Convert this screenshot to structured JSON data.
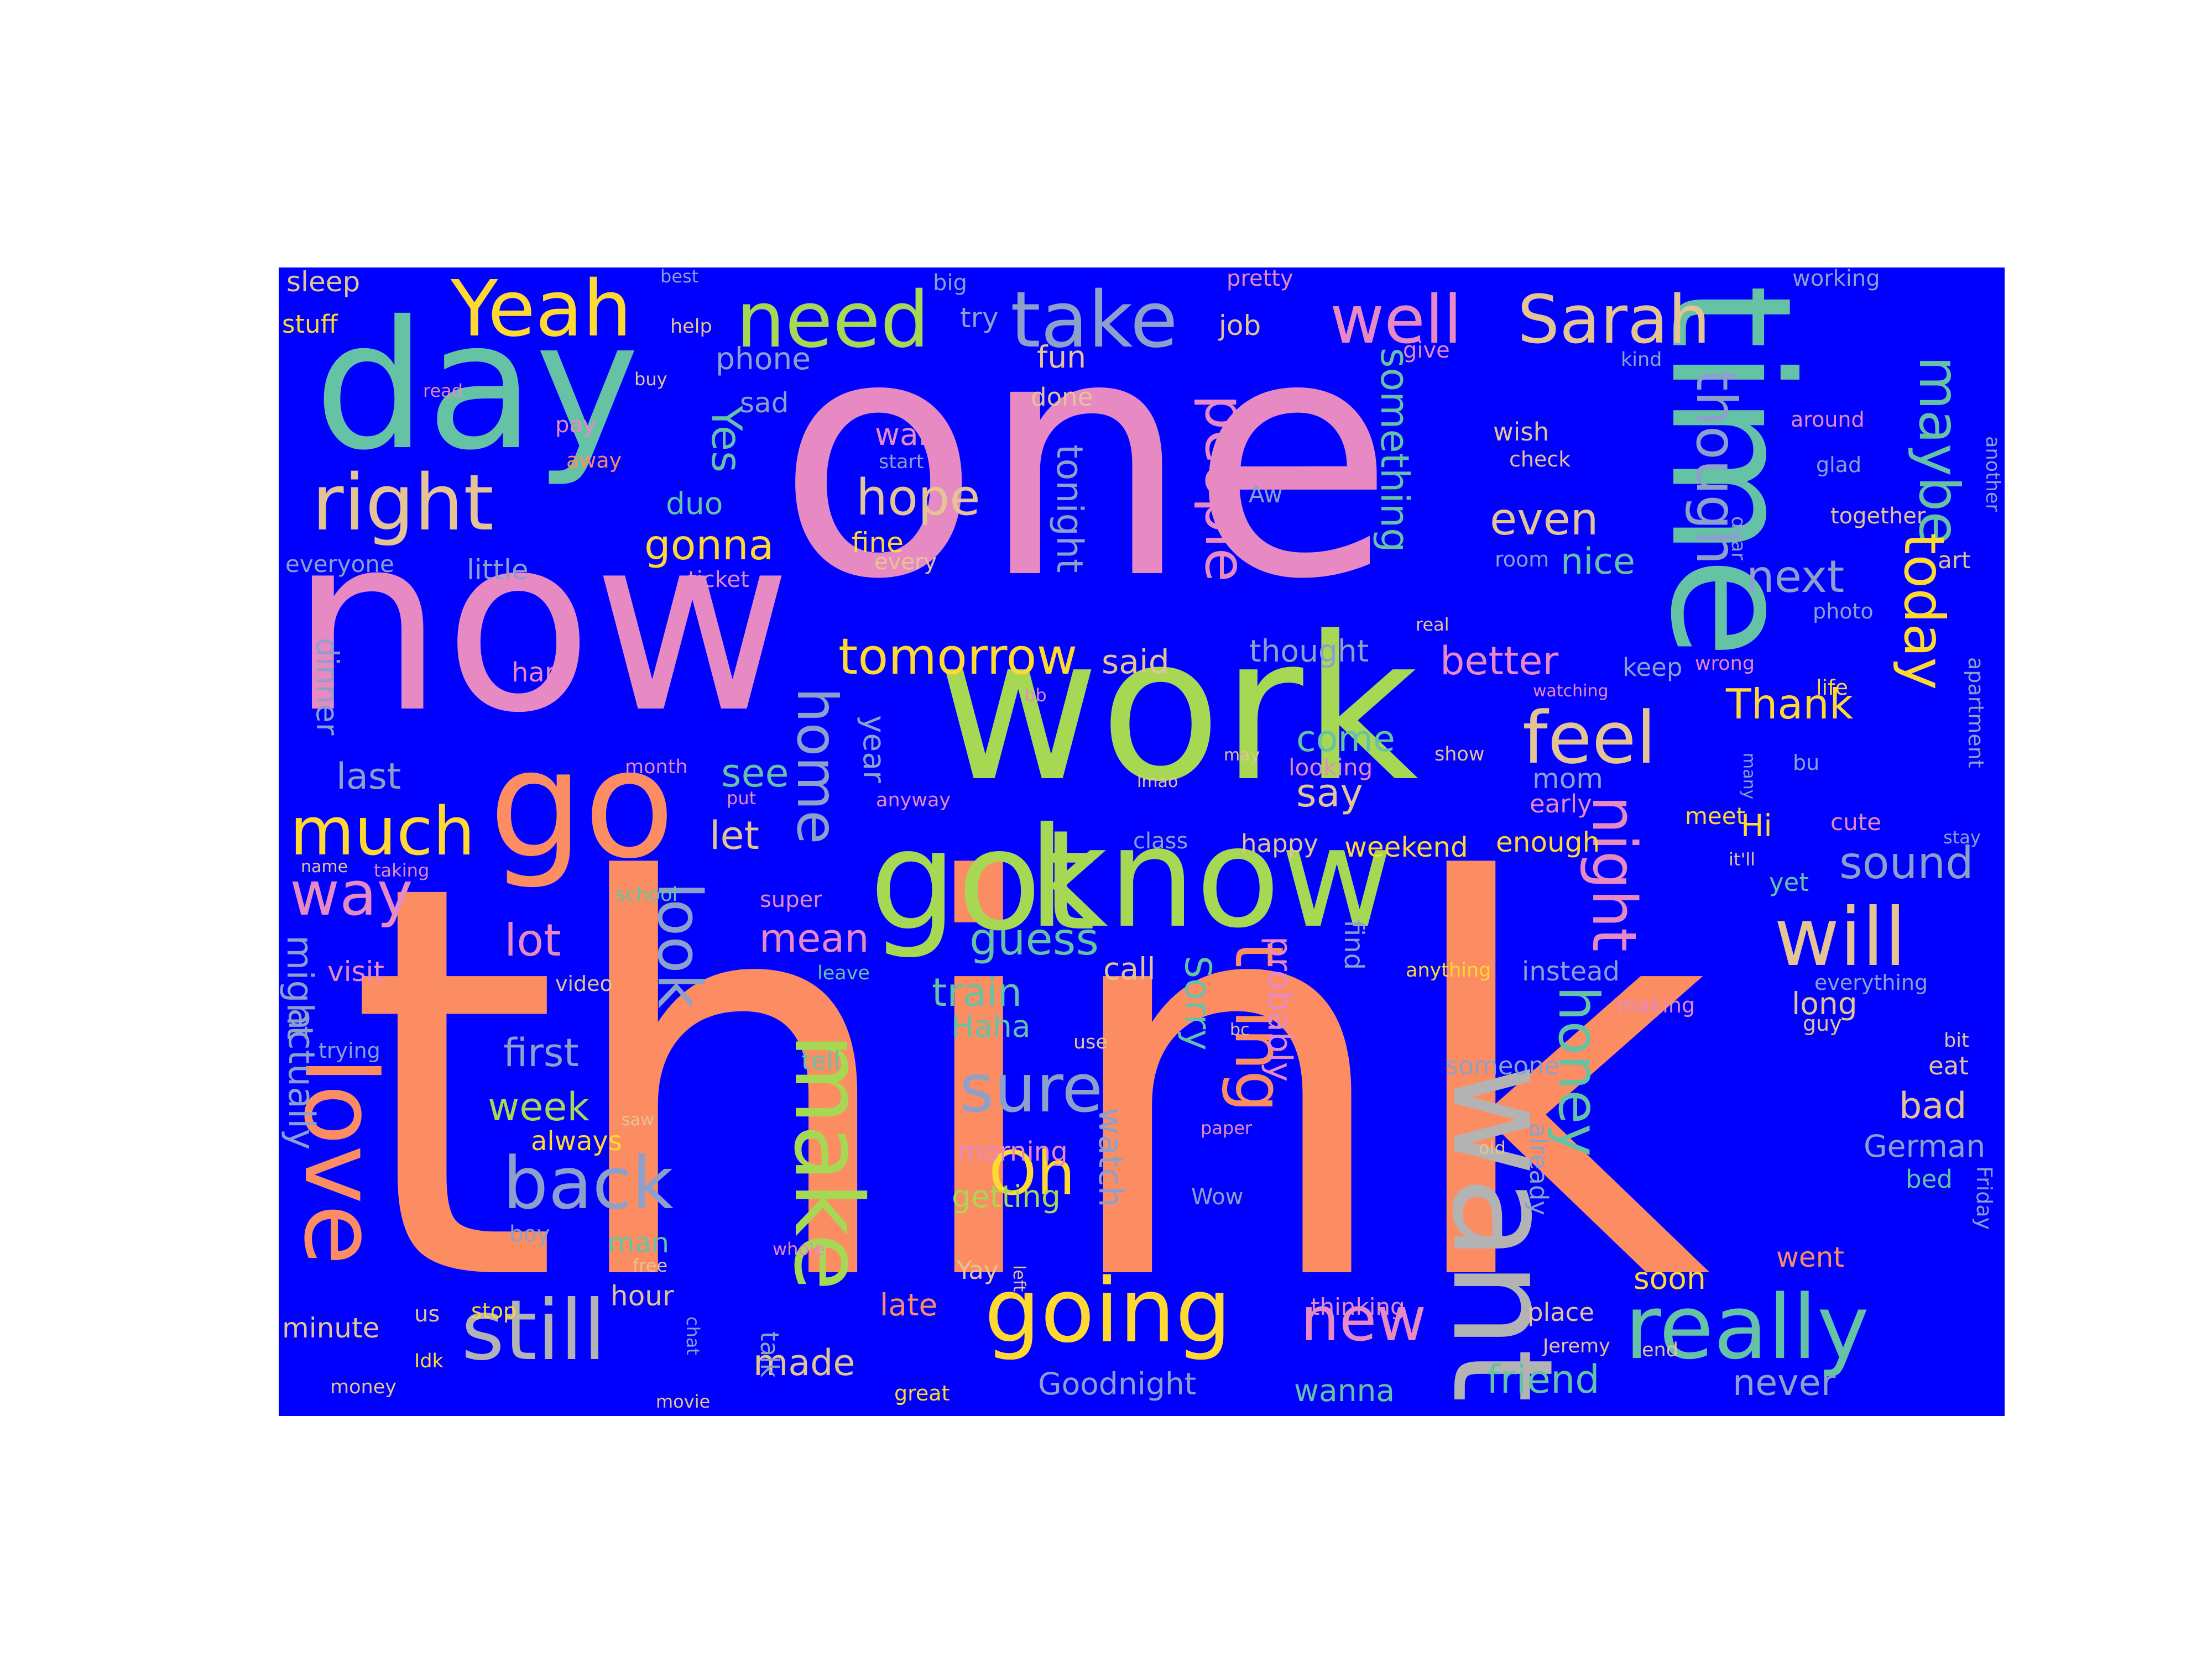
{
  "background_color": "#0000ff",
  "palette": {
    "pink": "#e78ac3",
    "orange": "#fc8d62",
    "lime": "#a6d854",
    "teal": "#66c2a5",
    "blue": "#8da0cb",
    "yellow": "#ffd92f",
    "tan": "#e5c494",
    "gray": "#b3b3b3"
  },
  "words": [
    {
      "text": "think",
      "color": "orange",
      "vertical": false
    },
    {
      "text": "one",
      "color": "pink",
      "vertical": false
    },
    {
      "text": "now",
      "color": "pink",
      "vertical": false
    },
    {
      "text": "work",
      "color": "lime",
      "vertical": false
    },
    {
      "text": "day",
      "color": "teal",
      "vertical": false
    },
    {
      "text": "time",
      "color": "teal",
      "vertical": true
    },
    {
      "text": "got",
      "color": "lime",
      "vertical": false
    },
    {
      "text": "know",
      "color": "lime",
      "vertical": false
    },
    {
      "text": "go",
      "color": "orange",
      "vertical": false
    },
    {
      "text": "want",
      "color": "gray",
      "vertical": true
    },
    {
      "text": "make",
      "color": "lime",
      "vertical": true
    },
    {
      "text": "love",
      "color": "orange",
      "vertical": true
    },
    {
      "text": "really",
      "color": "teal",
      "vertical": false
    },
    {
      "text": "still",
      "color": "gray",
      "vertical": false
    },
    {
      "text": "going",
      "color": "yellow",
      "vertical": false
    },
    {
      "text": "will",
      "color": "tan",
      "vertical": false
    },
    {
      "text": "right",
      "color": "tan",
      "vertical": false
    },
    {
      "text": "take",
      "color": "blue",
      "vertical": false
    },
    {
      "text": "Yeah",
      "color": "yellow",
      "vertical": false
    },
    {
      "text": "need",
      "color": "lime",
      "vertical": false
    },
    {
      "text": "well",
      "color": "pink",
      "vertical": false
    },
    {
      "text": "Sarah",
      "color": "tan",
      "vertical": false
    },
    {
      "text": "feel",
      "color": "tan",
      "vertical": false
    },
    {
      "text": "back",
      "color": "blue",
      "vertical": false
    },
    {
      "text": "thing",
      "color": "orange",
      "vertical": true
    },
    {
      "text": "night",
      "color": "pink",
      "vertical": true
    },
    {
      "text": "honey",
      "color": "teal",
      "vertical": true
    },
    {
      "text": "much",
      "color": "yellow",
      "vertical": false
    },
    {
      "text": "maybe",
      "color": "teal",
      "vertical": true
    },
    {
      "text": "today",
      "color": "yellow",
      "vertical": true
    },
    {
      "text": "sure",
      "color": "blue",
      "vertical": false
    },
    {
      "text": "look",
      "color": "blue",
      "vertical": true
    },
    {
      "text": "home",
      "color": "blue",
      "vertical": true
    },
    {
      "text": "people",
      "color": "pink",
      "vertical": true
    },
    {
      "text": "though",
      "color": "blue",
      "vertical": true
    },
    {
      "text": "Oh",
      "color": "yellow",
      "vertical": false
    },
    {
      "text": "way",
      "color": "pink",
      "vertical": false
    },
    {
      "text": "new",
      "color": "pink",
      "vertical": false
    },
    {
      "text": "tomorrow",
      "color": "yellow",
      "vertical": false
    },
    {
      "text": "hope",
      "color": "tan",
      "vertical": false
    },
    {
      "text": "something",
      "color": "teal",
      "vertical": true
    },
    {
      "text": "guess",
      "color": "teal",
      "vertical": false
    },
    {
      "text": "even",
      "color": "tan",
      "vertical": false
    },
    {
      "text": "next",
      "color": "blue",
      "vertical": false
    },
    {
      "text": "sound",
      "color": "blue",
      "vertical": false
    },
    {
      "text": "friend",
      "color": "teal",
      "vertical": false
    },
    {
      "text": "better",
      "color": "pink",
      "vertical": false
    },
    {
      "text": "lot",
      "color": "pink",
      "vertical": false
    },
    {
      "text": "mean",
      "color": "pink",
      "vertical": false
    },
    {
      "text": "first",
      "color": "blue",
      "vertical": false
    },
    {
      "text": "week",
      "color": "lime",
      "vertical": false
    },
    {
      "text": "actually",
      "color": "blue",
      "vertical": true
    },
    {
      "text": "might",
      "color": "blue",
      "vertical": true
    },
    {
      "text": "Thank",
      "color": "yellow",
      "vertical": false
    },
    {
      "text": "Yes",
      "color": "teal",
      "vertical": true
    },
    {
      "text": "gonna",
      "color": "yellow",
      "vertical": false
    },
    {
      "text": "tonight",
      "color": "blue",
      "vertical": true
    },
    {
      "text": "probably",
      "color": "pink",
      "vertical": true
    },
    {
      "text": "Sorry",
      "color": "teal",
      "vertical": true
    },
    {
      "text": "watch",
      "color": "blue",
      "vertical": true
    },
    {
      "text": "year",
      "color": "blue",
      "vertical": true
    },
    {
      "text": "see",
      "color": "teal",
      "vertical": false
    },
    {
      "text": "say",
      "color": "tan",
      "vertical": false
    },
    {
      "text": "come",
      "color": "teal",
      "vertical": false
    },
    {
      "text": "last",
      "color": "blue",
      "vertical": false
    },
    {
      "text": "let",
      "color": "tan",
      "vertical": false
    },
    {
      "text": "train",
      "color": "teal",
      "vertical": false
    },
    {
      "text": "made",
      "color": "tan",
      "vertical": false
    },
    {
      "text": "Goodnight",
      "color": "blue",
      "vertical": false
    },
    {
      "text": "bad",
      "color": "tan",
      "vertical": false
    },
    {
      "text": "nice",
      "color": "teal",
      "vertical": false
    },
    {
      "text": "said",
      "color": "tan",
      "vertical": false
    },
    {
      "text": "dinner",
      "color": "blue",
      "vertical": true
    },
    {
      "text": "fun",
      "color": "tan",
      "vertical": false
    },
    {
      "text": "duo",
      "color": "teal",
      "vertical": false
    },
    {
      "text": "little",
      "color": "blue",
      "vertical": false
    },
    {
      "text": "sad",
      "color": "blue",
      "vertical": false
    },
    {
      "text": "phone",
      "color": "blue",
      "vertical": false
    },
    {
      "text": "wait",
      "color": "pink",
      "vertical": false
    },
    {
      "text": "fine",
      "color": "yellow",
      "vertical": false
    },
    {
      "text": "thought",
      "color": "blue",
      "vertical": false
    },
    {
      "text": "mom",
      "color": "blue",
      "vertical": false
    },
    {
      "text": "Hi",
      "color": "yellow",
      "vertical": false
    },
    {
      "text": "long",
      "color": "tan",
      "vertical": false
    },
    {
      "text": "German",
      "color": "blue",
      "vertical": false
    },
    {
      "text": "never",
      "color": "blue",
      "vertical": false
    },
    {
      "text": "soon",
      "color": "yellow",
      "vertical": false
    },
    {
      "text": "wanna",
      "color": "teal",
      "vertical": false
    },
    {
      "text": "call",
      "color": "tan",
      "vertical": false
    },
    {
      "text": "Haha",
      "color": "teal",
      "vertical": false
    },
    {
      "text": "getting",
      "color": "lime",
      "vertical": false
    },
    {
      "text": "late",
      "color": "orange",
      "vertical": false
    },
    {
      "text": "weekend",
      "color": "yellow",
      "vertical": false
    },
    {
      "text": "enough",
      "color": "yellow",
      "vertical": false
    },
    {
      "text": "instead",
      "color": "blue",
      "vertical": false
    },
    {
      "text": "job",
      "color": "tan",
      "vertical": false
    },
    {
      "text": "done",
      "color": "tan",
      "vertical": false
    },
    {
      "text": "try",
      "color": "blue",
      "vertical": false
    },
    {
      "text": "hour",
      "color": "tan",
      "vertical": false
    },
    {
      "text": "minute",
      "color": "tan",
      "vertical": false
    },
    {
      "text": "man",
      "color": "teal",
      "vertical": false
    },
    {
      "text": "always",
      "color": "yellow",
      "vertical": false
    },
    {
      "text": "visit",
      "color": "pink",
      "vertical": false
    },
    {
      "text": "hard",
      "color": "pink",
      "vertical": false
    },
    {
      "text": "sleep",
      "color": "tan",
      "vertical": false
    },
    {
      "text": "stuff",
      "color": "yellow",
      "vertical": false
    },
    {
      "text": "everyone",
      "color": "blue",
      "vertical": false
    },
    {
      "text": "keep",
      "color": "blue",
      "vertical": false
    },
    {
      "text": "early",
      "color": "pink",
      "vertical": false
    },
    {
      "text": "meet",
      "color": "yellow",
      "vertical": false
    },
    {
      "text": "cute",
      "color": "pink",
      "vertical": false
    },
    {
      "text": "yet",
      "color": "teal",
      "vertical": false
    },
    {
      "text": "eat",
      "color": "tan",
      "vertical": false
    },
    {
      "text": "bed",
      "color": "teal",
      "vertical": false
    },
    {
      "text": "went",
      "color": "orange",
      "vertical": false
    },
    {
      "text": "place",
      "color": "tan",
      "vertical": false
    },
    {
      "text": "tell",
      "color": "teal",
      "vertical": false
    },
    {
      "text": "morning",
      "color": "pink",
      "vertical": false
    },
    {
      "text": "happy",
      "color": "tan",
      "vertical": false
    },
    {
      "text": "find",
      "color": "blue",
      "vertical": true
    },
    {
      "text": "looking",
      "color": "pink",
      "vertical": false
    },
    {
      "text": "someone",
      "color": "blue",
      "vertical": false
    },
    {
      "text": "already",
      "color": "blue",
      "vertical": true
    },
    {
      "text": "wish",
      "color": "tan",
      "vertical": false
    },
    {
      "text": "check",
      "color": "tan",
      "vertical": false
    },
    {
      "text": "Aw",
      "color": "blue",
      "vertical": false
    },
    {
      "text": "room",
      "color": "blue",
      "vertical": false
    },
    {
      "text": "art",
      "color": "tan",
      "vertical": false
    },
    {
      "text": "together",
      "color": "tan",
      "vertical": false
    },
    {
      "text": "around",
      "color": "pink",
      "vertical": false
    },
    {
      "text": "glad",
      "color": "blue",
      "vertical": false
    },
    {
      "text": "working",
      "color": "blue",
      "vertical": false
    },
    {
      "text": "kind",
      "color": "blue",
      "vertical": false
    },
    {
      "text": "another",
      "color": "blue",
      "vertical": true
    },
    {
      "text": "photo",
      "color": "blue",
      "vertical": false
    },
    {
      "text": "life",
      "color": "yellow",
      "vertical": false
    },
    {
      "text": "bu",
      "color": "blue",
      "vertical": false
    },
    {
      "text": "apartment",
      "color": "blue",
      "vertical": true
    },
    {
      "text": "everything",
      "color": "blue",
      "vertical": false
    },
    {
      "text": "guy",
      "color": "tan",
      "vertical": false
    },
    {
      "text": "bit",
      "color": "tan",
      "vertical": false
    },
    {
      "text": "stay",
      "color": "blue",
      "vertical": false
    },
    {
      "text": "Friday",
      "color": "blue",
      "vertical": true
    },
    {
      "text": "pretty",
      "color": "pink",
      "vertical": false
    },
    {
      "text": "give",
      "color": "pink",
      "vertical": false
    },
    {
      "text": "big",
      "color": "blue",
      "vertical": false
    },
    {
      "text": "best",
      "color": "blue",
      "vertical": false
    },
    {
      "text": "help",
      "color": "tan",
      "vertical": false
    },
    {
      "text": "buy",
      "color": "tan",
      "vertical": false
    },
    {
      "text": "read",
      "color": "pink",
      "vertical": false
    },
    {
      "text": "pay",
      "color": "pink",
      "vertical": false
    },
    {
      "text": "away",
      "color": "orange",
      "vertical": false
    },
    {
      "text": "start",
      "color": "blue",
      "vertical": false
    },
    {
      "text": "every",
      "color": "tan",
      "vertical": false
    },
    {
      "text": "ticket",
      "color": "pink",
      "vertical": false
    },
    {
      "text": "real",
      "color": "tan",
      "vertical": false
    },
    {
      "text": "dear",
      "color": "blue",
      "vertical": true
    },
    {
      "text": "wrong",
      "color": "pink",
      "vertical": false
    },
    {
      "text": "watching",
      "color": "pink",
      "vertical": false
    },
    {
      "text": "many",
      "color": "blue",
      "vertical": true
    },
    {
      "text": "bb",
      "color": "pink",
      "vertical": false
    },
    {
      "text": "show",
      "color": "tan",
      "vertical": false
    },
    {
      "text": "may",
      "color": "tan",
      "vertical": false
    },
    {
      "text": "lmao",
      "color": "tan",
      "vertical": false
    },
    {
      "text": "month",
      "color": "pink",
      "vertical": false
    },
    {
      "text": "anyway",
      "color": "pink",
      "vertical": false
    },
    {
      "text": "name",
      "color": "tan",
      "vertical": false
    },
    {
      "text": "taking",
      "color": "pink",
      "vertical": false
    },
    {
      "text": "school",
      "color": "teal",
      "vertical": false
    },
    {
      "text": "put",
      "color": "pink",
      "vertical": false
    },
    {
      "text": "super",
      "color": "pink",
      "vertical": false
    },
    {
      "text": "class",
      "color": "blue",
      "vertical": false
    },
    {
      "text": "it'll",
      "color": "tan",
      "vertical": false
    },
    {
      "text": "leave",
      "color": "teal",
      "vertical": false
    },
    {
      "text": "video",
      "color": "tan",
      "vertical": false
    },
    {
      "text": "anything",
      "color": "yellow",
      "vertical": false
    },
    {
      "text": "making",
      "color": "pink",
      "vertical": false
    },
    {
      "text": "trying",
      "color": "blue",
      "vertical": false
    },
    {
      "text": "use",
      "color": "tan",
      "vertical": false
    },
    {
      "text": "bc",
      "color": "tan",
      "vertical": false
    },
    {
      "text": "saw",
      "color": "tan",
      "vertical": false
    },
    {
      "text": "paper",
      "color": "pink",
      "vertical": false
    },
    {
      "text": "old",
      "color": "tan",
      "vertical": false
    },
    {
      "text": "Wow",
      "color": "blue",
      "vertical": false
    },
    {
      "text": "boy",
      "color": "blue",
      "vertical": false
    },
    {
      "text": "whole",
      "color": "pink",
      "vertical": false
    },
    {
      "text": "free",
      "color": "tan",
      "vertical": false
    },
    {
      "text": "Yay",
      "color": "tan",
      "vertical": false
    },
    {
      "text": "left",
      "color": "tan",
      "vertical": true
    },
    {
      "text": "thinking",
      "color": "pink",
      "vertical": false
    },
    {
      "text": "us",
      "color": "tan",
      "vertical": false
    },
    {
      "text": "stop",
      "color": "yellow",
      "vertical": false
    },
    {
      "text": "chat",
      "color": "blue",
      "vertical": true
    },
    {
      "text": "talk",
      "color": "blue",
      "vertical": true
    },
    {
      "text": "Jeremy",
      "color": "tan",
      "vertical": false
    },
    {
      "text": "end",
      "color": "tan",
      "vertical": false
    },
    {
      "text": "Idk",
      "color": "yellow",
      "vertical": false
    },
    {
      "text": "money",
      "color": "tan",
      "vertical": false
    },
    {
      "text": "movie",
      "color": "tan",
      "vertical": false
    },
    {
      "text": "great",
      "color": "yellow",
      "vertical": false
    }
  ]
}
